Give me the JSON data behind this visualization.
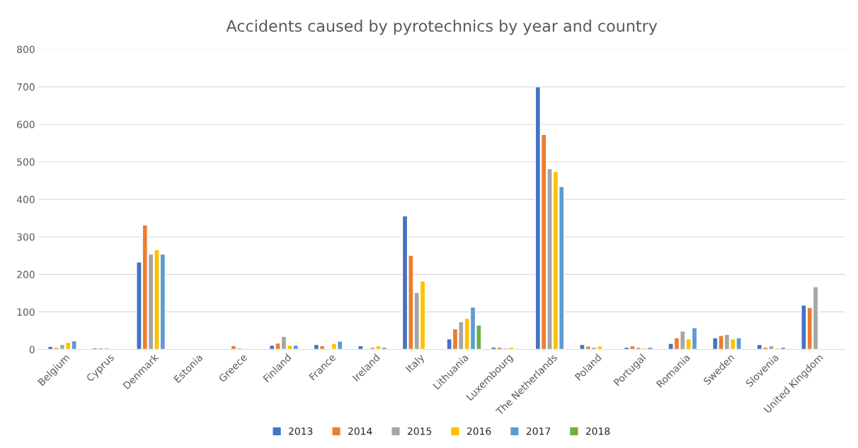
{
  "chart_data": {
    "type": "bar",
    "title": "Accidents caused by pyrotechnics by year and country",
    "categories": [
      "Belgium",
      "Cyprus",
      "Denmark",
      "Estonia",
      "Greece",
      "Finland",
      "France",
      "Ireland",
      "Italy",
      "Lithuania",
      "Luxembourg",
      "The Netherlands",
      "Poland",
      "Portugal",
      "Romania",
      "Sweden",
      "Slovenia",
      "United Kingdom"
    ],
    "series": [
      {
        "name": "2013",
        "color": "#4472c4",
        "values": [
          8,
          4,
          233,
          null,
          null,
          11,
          13,
          10,
          356,
          28,
          6,
          700,
          13,
          6,
          16,
          31,
          13,
          118
        ]
      },
      {
        "name": "2014",
        "color": "#ed7d31",
        "values": [
          5,
          4,
          332,
          null,
          10,
          17,
          10,
          null,
          251,
          55,
          6,
          573,
          9,
          10,
          31,
          37,
          6,
          112
        ]
      },
      {
        "name": "2015",
        "color": "#a5a5a5",
        "values": [
          13,
          4,
          254,
          null,
          4,
          35,
          null,
          6,
          152,
          74,
          4,
          482,
          6,
          6,
          49,
          40,
          10,
          167
        ]
      },
      {
        "name": "2016",
        "color": "#ffc000",
        "values": [
          19,
          null,
          266,
          null,
          null,
          11,
          16,
          10,
          182,
          83,
          6,
          474,
          9,
          4,
          28,
          28,
          4,
          null
        ]
      },
      {
        "name": "2017",
        "color": "#5b9bd5",
        "values": [
          23,
          null,
          254,
          null,
          null,
          11,
          22,
          6,
          null,
          113,
          null,
          434,
          null,
          6,
          58,
          31,
          6,
          null
        ]
      },
      {
        "name": "2018",
        "color": "#70ad47",
        "values": [
          null,
          null,
          null,
          null,
          null,
          null,
          null,
          null,
          null,
          65,
          null,
          null,
          null,
          null,
          null,
          null,
          null,
          null
        ]
      }
    ],
    "ylim": [
      0,
      800
    ],
    "yticks": [
      0,
      100,
      200,
      300,
      400,
      500,
      600,
      700,
      800
    ],
    "grid": "y",
    "legend": "bottom"
  }
}
